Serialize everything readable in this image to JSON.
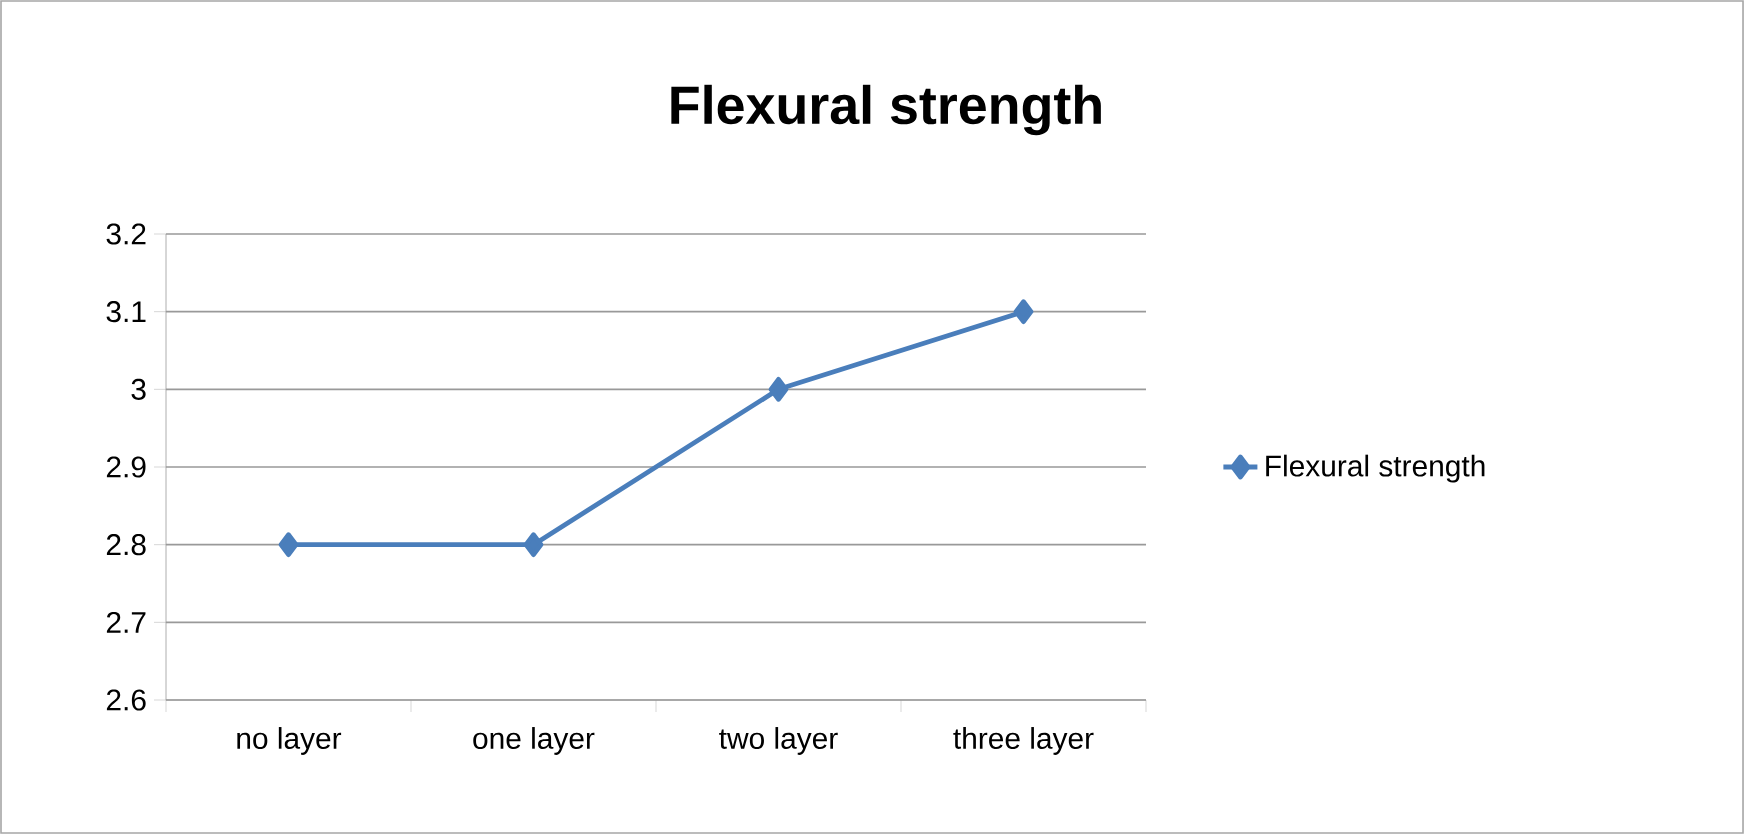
{
  "chart_data": {
    "type": "line",
    "title": "Flexural strength",
    "categories": [
      "no layer",
      "one layer",
      "two layer",
      "three layer"
    ],
    "series": [
      {
        "name": "Flexural strength",
        "color": "#4a7ebb",
        "values": [
          2.8,
          2.8,
          3.0,
          3.1
        ]
      }
    ],
    "ylim": [
      2.6,
      3.2
    ],
    "yticks": [
      2.6,
      2.7,
      2.8,
      2.9,
      3,
      3.1,
      3.2
    ],
    "grid": "y",
    "legend": "right",
    "marker": "diamond",
    "line_style": "solid"
  }
}
